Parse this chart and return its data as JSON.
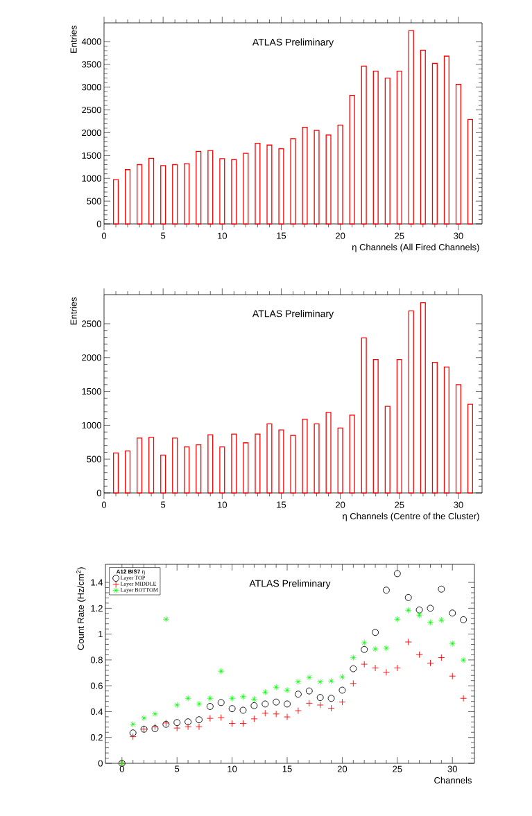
{
  "chart_data": [
    {
      "type": "bar",
      "annotations": [
        "ATLAS Preliminary"
      ],
      "xlabel": "η Channels (All Fired Channels)",
      "ylabel": "Entries",
      "color": "#ff0000",
      "x": [
        1,
        2,
        3,
        4,
        5,
        6,
        7,
        8,
        9,
        10,
        11,
        12,
        13,
        14,
        15,
        16,
        17,
        18,
        19,
        20,
        21,
        22,
        23,
        24,
        25,
        26,
        27,
        28,
        29,
        30,
        31
      ],
      "values": [
        970,
        1190,
        1300,
        1440,
        1280,
        1300,
        1320,
        1590,
        1610,
        1430,
        1410,
        1550,
        1770,
        1730,
        1650,
        1870,
        2120,
        2050,
        1950,
        2170,
        2820,
        3460,
        3350,
        3200,
        3350,
        4240,
        3810,
        3520,
        3680,
        3060,
        2290
      ],
      "xlim": [
        0,
        32
      ],
      "ylim": [
        0,
        4410
      ],
      "xticks": [
        0,
        5,
        10,
        15,
        20,
        25,
        30
      ],
      "yticks": [
        0,
        500,
        1000,
        1500,
        2000,
        2500,
        3000,
        3500,
        4000
      ]
    },
    {
      "type": "bar",
      "annotations": [
        "ATLAS Preliminary"
      ],
      "xlabel": "η Channels (Centre of the Cluster)",
      "ylabel": "Entries",
      "color": "#ff0000",
      "x": [
        1,
        2,
        3,
        4,
        5,
        6,
        7,
        8,
        9,
        10,
        11,
        12,
        13,
        14,
        15,
        16,
        17,
        18,
        19,
        20,
        21,
        22,
        23,
        24,
        25,
        26,
        27,
        28,
        29,
        30,
        31
      ],
      "values": [
        590,
        620,
        810,
        820,
        560,
        810,
        680,
        710,
        860,
        680,
        870,
        740,
        870,
        1020,
        930,
        850,
        1090,
        1020,
        1190,
        960,
        1150,
        2290,
        1970,
        1280,
        1970,
        2690,
        2810,
        1930,
        1860,
        1600,
        1310
      ],
      "xlim": [
        0,
        32
      ],
      "ylim": [
        0,
        2930
      ],
      "xticks": [
        0,
        5,
        10,
        15,
        20,
        25,
        30
      ],
      "yticks": [
        0,
        500,
        1000,
        1500,
        2000,
        2500
      ]
    },
    {
      "type": "scatter",
      "annotations": [
        "ATLAS Preliminary"
      ],
      "xlabel": "Channels",
      "ylabel": "Count Rate (Hz/cm$^{2}$)",
      "legend": "top left",
      "legend_title": "**A12 BIS7** η",
      "x": [
        0,
        1,
        2,
        3,
        4,
        5,
        6,
        7,
        8,
        9,
        10,
        11,
        12,
        13,
        14,
        15,
        16,
        17,
        18,
        19,
        20,
        21,
        22,
        23,
        24,
        25,
        26,
        27,
        28,
        29,
        30,
        31
      ],
      "series": [
        {
          "name": "Layer TOP",
          "color": "#000000",
          "marker": "circle",
          "values": [
            0,
            0.235,
            0.264,
            0.268,
            0.302,
            0.315,
            0.321,
            0.337,
            0.44,
            0.47,
            0.423,
            0.411,
            0.446,
            0.459,
            0.474,
            0.459,
            0.535,
            0.56,
            0.509,
            0.503,
            0.566,
            0.732,
            0.881,
            1.013,
            1.34,
            1.468,
            1.283,
            1.187,
            1.2,
            1.348,
            1.163,
            1.111
          ]
        },
        {
          "name": "Layer MIDDLE",
          "color": "#ff0000",
          "marker": "cross",
          "values": [
            0,
            0.206,
            0.264,
            0.283,
            0.312,
            0.273,
            0.283,
            0.283,
            0.348,
            0.354,
            0.308,
            0.308,
            0.344,
            0.388,
            0.382,
            0.359,
            0.407,
            0.465,
            0.451,
            0.426,
            0.474,
            0.618,
            0.767,
            0.738,
            0.704,
            0.738,
            0.939,
            0.841,
            0.776,
            0.818,
            0.675,
            0.503
          ]
        },
        {
          "name": "Layer BOTTOM",
          "color": "#00ff00",
          "marker": "star",
          "values": [
            0,
            0.302,
            0.35,
            0.382,
            1.115,
            0.451,
            0.503,
            0.459,
            0.503,
            0.713,
            0.503,
            0.516,
            0.497,
            0.551,
            0.589,
            0.566,
            0.631,
            0.665,
            0.631,
            0.637,
            0.669,
            0.818,
            0.933,
            0.885,
            0.891,
            1.115,
            1.185,
            1.147,
            1.09,
            1.109,
            0.927,
            0.799
          ]
        }
      ],
      "xlim": [
        -1.5,
        32
      ],
      "ylim": [
        0,
        1.54
      ],
      "xticks": [
        0,
        5,
        10,
        15,
        20,
        25,
        30
      ],
      "yticks": [
        0,
        0.2,
        0.4,
        0.6,
        0.8,
        1,
        1.2,
        1.4
      ]
    }
  ]
}
